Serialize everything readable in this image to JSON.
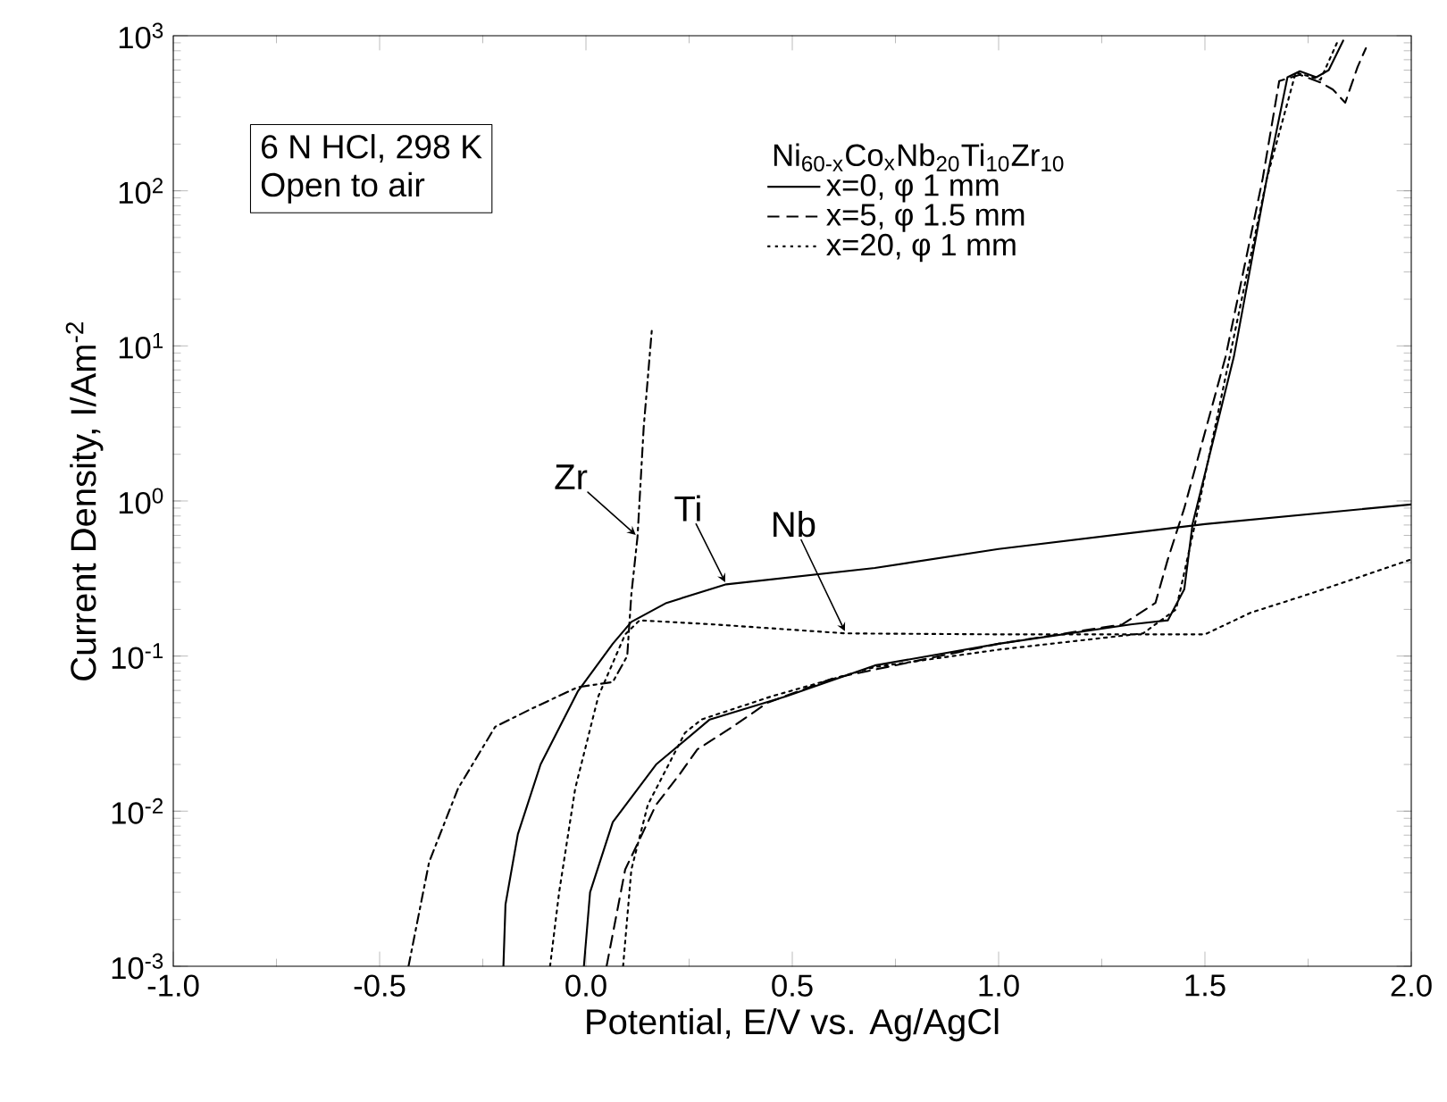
{
  "chart_data": {
    "type": "line",
    "xlabel": "Potential, E/V vs. Ag/AgCl",
    "ylabel": "Current Density, I/Am$^{-2}$",
    "legend_title": "Ni$_{60-x}$Co$_{x}$Nb$_{20}$Ti$_{10}$Zr$_{10}$",
    "legend": "top right",
    "log": true,
    "grid": false,
    "annotations": [
      "6 N HCl, 298 K",
      "Open to air"
    ],
    "xlim": [
      -1,
      2
    ],
    "ylim": [
      0.001,
      1000
    ],
    "xticks": [
      {
        "value": -1,
        "label": "-1.0"
      },
      {
        "value": -0.5,
        "label": "-0.5"
      },
      {
        "value": 0,
        "label": "0.0"
      },
      {
        "value": 0.5,
        "label": "0.5"
      },
      {
        "value": 1,
        "label": "1.0"
      },
      {
        "value": 1.5,
        "label": "1.5"
      },
      {
        "value": 2,
        "label": "2.0"
      }
    ],
    "yticks": [
      {
        "value": 0.001,
        "label": "10$^{-3}$"
      },
      {
        "value": 0.01,
        "label": "10$^{-2}$"
      },
      {
        "value": 0.1,
        "label": "10$^{-1}$"
      },
      {
        "value": 1,
        "label": "10$^{0}$"
      },
      {
        "value": 10,
        "label": "10$^{1}$"
      },
      {
        "value": 100,
        "label": "10$^{2}$"
      },
      {
        "value": 1000,
        "label": "10$^{3}$"
      }
    ],
    "series": [
      {
        "name": "x=0, φ 1 mm",
        "color": "#000000",
        "line_style": "solid",
        "x": [
          -0.005,
          0.01,
          0.065,
          0.17,
          0.3,
          0.485,
          0.7,
          1.0,
          1.32,
          1.41,
          1.45,
          1.47,
          1.57,
          1.65,
          1.7,
          1.73,
          1.77,
          1.8,
          1.835
        ],
        "values": [
          0.001,
          0.003,
          0.0085,
          0.02,
          0.039,
          0.055,
          0.087,
          0.12,
          0.16,
          0.17,
          0.27,
          0.71,
          8.5,
          120,
          540,
          590,
          540,
          600,
          930
        ]
      },
      {
        "name": "x=5, φ 1.5 mm",
        "color": "#000000",
        "line_style": "dashed",
        "x": [
          0.05,
          0.095,
          0.17,
          0.225,
          0.27,
          0.355,
          0.44,
          0.6,
          1.0,
          1.3,
          1.38,
          1.41,
          1.45,
          1.55,
          1.64,
          1.68,
          1.73,
          1.78,
          1.81,
          1.84,
          1.87,
          1.89
        ],
        "values": [
          0.001,
          0.0042,
          0.011,
          0.017,
          0.025,
          0.035,
          0.05,
          0.072,
          0.12,
          0.16,
          0.22,
          0.42,
          0.9,
          8.5,
          120,
          510,
          560,
          500,
          450,
          370,
          630,
          830
        ]
      },
      {
        "name": "x=20, φ 1 mm",
        "color": "#000000",
        "line_style": "dotted",
        "x": [
          0.09,
          0.11,
          0.15,
          0.24,
          0.28,
          0.45,
          0.7,
          1.0,
          1.35,
          1.43,
          1.47,
          1.56,
          1.65,
          1.72,
          1.78,
          1.82
        ],
        "values": [
          0.001,
          0.0042,
          0.011,
          0.032,
          0.039,
          0.055,
          0.085,
          0.11,
          0.14,
          0.2,
          0.6,
          8.5,
          120,
          580,
          520,
          900
        ]
      },
      {
        "name": "Zr",
        "color": "#000000",
        "line_style": "dashdot",
        "x": [
          -0.43,
          -0.38,
          -0.31,
          -0.22,
          -0.13,
          -0.02,
          0.065,
          0.1,
          0.11,
          0.125,
          0.14,
          0.16
        ],
        "values": [
          0.001,
          0.0047,
          0.014,
          0.035,
          0.046,
          0.063,
          0.068,
          0.1,
          0.25,
          0.59,
          3.0,
          13
        ]
      },
      {
        "name": "Ti",
        "color": "#000000",
        "line_style": "solid",
        "x": [
          -0.2,
          -0.195,
          -0.165,
          -0.11,
          -0.02,
          0.065,
          0.11,
          0.195,
          0.34,
          0.7,
          1.0,
          1.5,
          2.0
        ],
        "values": [
          0.001,
          0.0025,
          0.0071,
          0.02,
          0.059,
          0.12,
          0.166,
          0.22,
          0.29,
          0.37,
          0.49,
          0.71,
          0.95
        ]
      },
      {
        "name": "Nb",
        "color": "#000000",
        "line_style": "dotted",
        "x": [
          -0.087,
          -0.065,
          -0.026,
          0.03,
          0.095,
          0.13,
          0.31,
          0.63,
          1.0,
          1.5,
          1.61,
          1.75,
          1.87,
          2.0
        ],
        "values": [
          0.001,
          0.003,
          0.014,
          0.055,
          0.138,
          0.17,
          0.16,
          0.14,
          0.138,
          0.138,
          0.19,
          0.25,
          0.32,
          0.42
        ]
      }
    ]
  }
}
